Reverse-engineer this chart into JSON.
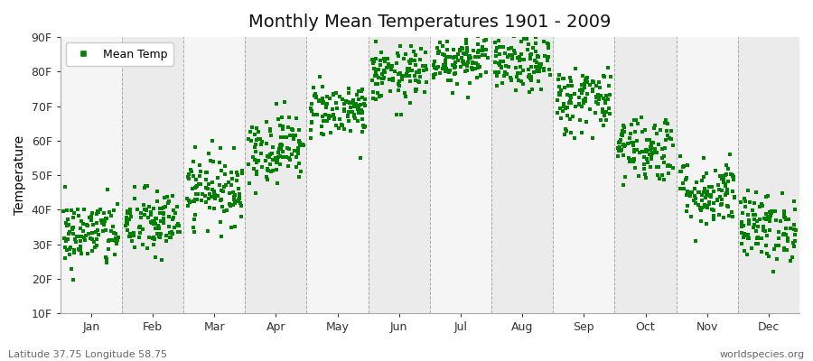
{
  "title": "Monthly Mean Temperatures 1901 - 2009",
  "ylabel": "Temperature",
  "xlabel_bottom": "Latitude 37.75 Longitude 58.75",
  "watermark": "worldspecies.org",
  "legend_label": "Mean Temp",
  "marker": "s",
  "marker_color": "#008000",
  "marker_size": 3,
  "ylim": [
    10,
    90
  ],
  "ytick_labels": [
    "10F",
    "20F",
    "30F",
    "40F",
    "50F",
    "60F",
    "70F",
    "80F",
    "90F"
  ],
  "ytick_values": [
    10,
    20,
    30,
    40,
    50,
    60,
    70,
    80,
    90
  ],
  "months": [
    "Jan",
    "Feb",
    "Mar",
    "Apr",
    "May",
    "Jun",
    "Jul",
    "Aug",
    "Sep",
    "Oct",
    "Nov",
    "Dec"
  ],
  "month_centers": [
    0.5,
    1.5,
    2.5,
    3.5,
    4.5,
    5.5,
    6.5,
    7.5,
    8.5,
    9.5,
    10.5,
    11.5
  ],
  "month_boundaries": [
    0,
    1,
    2,
    3,
    4,
    5,
    6,
    7,
    8,
    9,
    10,
    11,
    12
  ],
  "n_years": 109,
  "mean_temps_F": [
    33,
    36,
    46,
    58,
    69,
    79,
    84,
    82,
    72,
    58,
    45,
    35
  ],
  "std_temps_F": [
    5,
    5,
    5,
    5,
    4,
    4,
    4,
    4,
    5,
    5,
    5,
    5
  ],
  "background_color": "#ffffff",
  "plot_bg_color": "#f5f5f5",
  "band_color_even": "#f5f5f5",
  "band_color_odd": "#ebebeb",
  "grid_color": "#888888",
  "title_fontsize": 14,
  "axis_fontsize": 10,
  "tick_fontsize": 9,
  "legend_fontsize": 9
}
